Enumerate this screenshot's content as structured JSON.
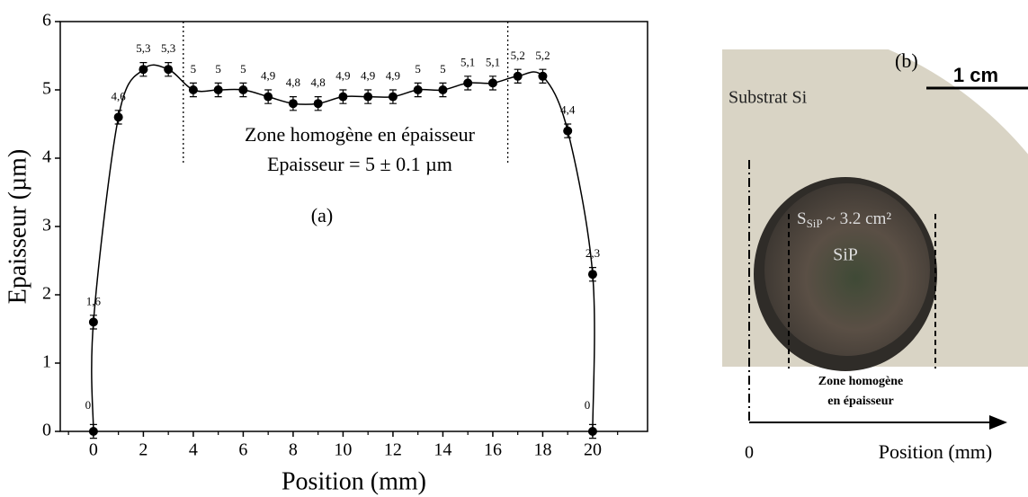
{
  "chart_data": {
    "type": "line",
    "xlabel": "Position (mm)",
    "ylabel": "Epaisseur (µm)",
    "annotations": [
      "Zone homogène en épaisseur",
      "Epaisseur = 5 ± 0.1 µm",
      "(a)"
    ],
    "x": [
      0,
      0,
      1,
      2,
      3,
      4,
      5,
      6,
      7,
      8,
      9,
      10,
      11,
      12,
      13,
      14,
      15,
      16,
      17,
      18,
      19,
      20,
      20
    ],
    "series": [
      {
        "color": "#000000",
        "values": [
          0,
          1.6,
          4.6,
          5.3,
          5.3,
          5,
          5,
          5,
          4.9,
          4.8,
          4.8,
          4.9,
          4.9,
          4.9,
          5,
          5,
          5.1,
          5.1,
          5.2,
          5.2,
          4.4,
          2.3,
          0
        ],
        "value_labels": [
          "0",
          "1,6",
          "4,6",
          "5,3",
          "5,3",
          "5",
          "5",
          "5",
          "4,9",
          "4,8",
          "4,8",
          "4,9",
          "4,9",
          "4,9",
          "5",
          "5",
          "5,1",
          "5,1",
          "5,2",
          "5,2",
          "4,4",
          "2,3",
          "0"
        ],
        "errors": [
          0.1,
          0.1,
          0.1,
          0.1,
          0.1,
          0.1,
          0.1,
          0.1,
          0.1,
          0.1,
          0.1,
          0.1,
          0.1,
          0.1,
          0.1,
          0.1,
          0.1,
          0.1,
          0.1,
          0.1,
          0.1,
          0.1,
          0.1
        ]
      }
    ],
    "vlines": [
      3.6,
      16.6
    ],
    "xlim": [
      -1.33,
      22.2
    ],
    "ylim": [
      0,
      6
    ],
    "xticks": [
      0,
      2,
      4,
      6,
      8,
      10,
      12,
      14,
      16,
      18,
      20
    ],
    "xminor": [
      -1,
      1,
      3,
      5,
      7,
      9,
      11,
      13,
      15,
      17,
      19,
      21
    ],
    "yticks": [
      0,
      1,
      2,
      3,
      4,
      5,
      6
    ]
  },
  "photo": {
    "label": "(b)",
    "scale": "1 cm",
    "substrate": "Substrat Si",
    "area": [
      "S",
      "SiP",
      "~ 3.2 cm²"
    ],
    "disc": "SiP",
    "zone": [
      "Zone homogène",
      "en épaisseur"
    ],
    "origin": "0",
    "axis": "Position (mm)"
  }
}
